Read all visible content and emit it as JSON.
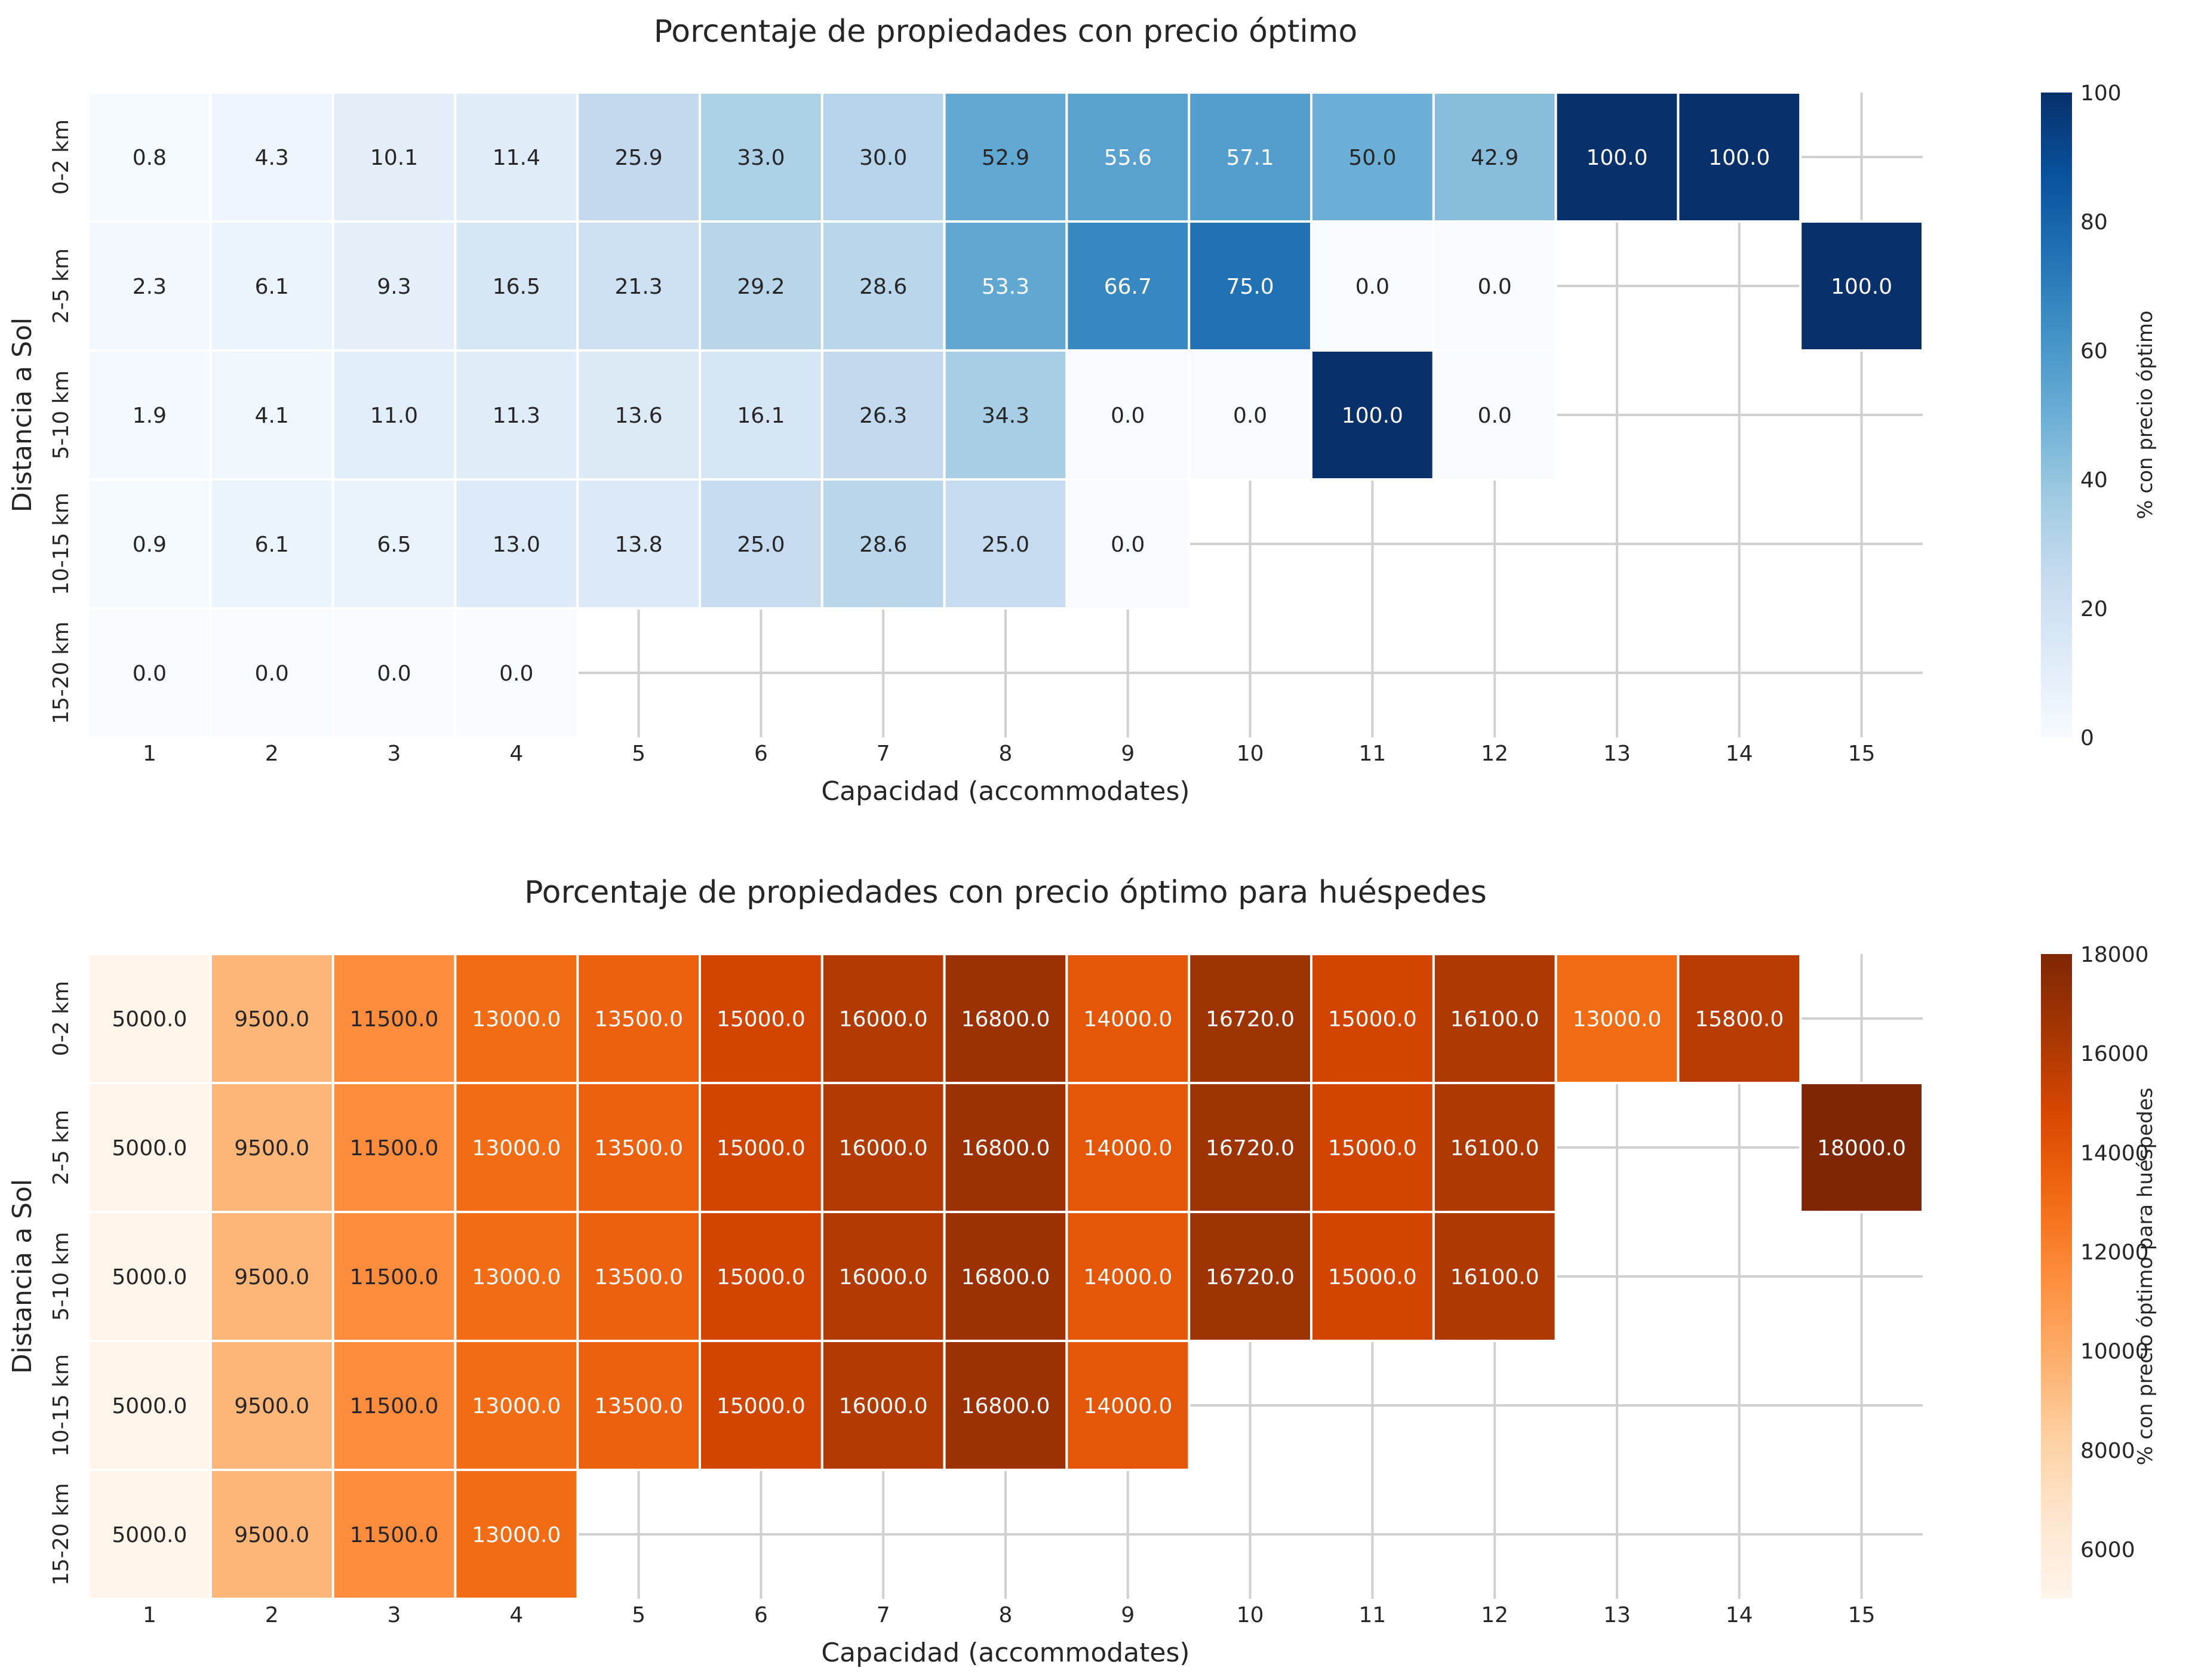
{
  "chart_data": [
    {
      "type": "heatmap",
      "title": "Porcentaje de propiedades con precio óptimo",
      "xlabel": "Capacidad (accommodates)",
      "ylabel": "Distancia a Sol",
      "x_categories": [
        "1",
        "2",
        "3",
        "4",
        "5",
        "6",
        "7",
        "8",
        "9",
        "10",
        "11",
        "12",
        "13",
        "14",
        "15"
      ],
      "y_categories": [
        "0-2 km",
        "2-5 km",
        "5-10 km",
        "10-15 km",
        "15-20 km"
      ],
      "values": [
        [
          0.8,
          4.3,
          10.1,
          11.4,
          25.9,
          33.0,
          30.0,
          52.9,
          55.6,
          57.1,
          50.0,
          42.9,
          100.0,
          100.0,
          null
        ],
        [
          2.3,
          6.1,
          9.3,
          16.5,
          21.3,
          29.2,
          28.6,
          53.3,
          66.7,
          75.0,
          0.0,
          0.0,
          null,
          null,
          100.0
        ],
        [
          1.9,
          4.1,
          11.0,
          11.3,
          13.6,
          16.1,
          26.3,
          34.3,
          0.0,
          0.0,
          100.0,
          0.0,
          null,
          null,
          null
        ],
        [
          0.9,
          6.1,
          6.5,
          13.0,
          13.8,
          25.0,
          28.6,
          25.0,
          0.0,
          null,
          null,
          null,
          null,
          null,
          null
        ],
        [
          0.0,
          0.0,
          0.0,
          0.0,
          null,
          null,
          null,
          null,
          null,
          null,
          null,
          null,
          null,
          null,
          null
        ]
      ],
      "colormap": "Blues",
      "vmin": 0,
      "vmax": 100,
      "colorbar_label": "% con precio óptimo",
      "colorbar_ticks": [
        "0",
        "20",
        "40",
        "60",
        "80",
        "100"
      ],
      "colorbar_tick_values": [
        0,
        20,
        40,
        60,
        80,
        100
      ],
      "text_dark_color": "#262626",
      "text_light_color": "#ffffff",
      "grid": true
    },
    {
      "type": "heatmap",
      "title": "Porcentaje de propiedades con precio óptimo para huéspedes",
      "xlabel": "Capacidad (accommodates)",
      "ylabel": "Distancia a Sol",
      "x_categories": [
        "1",
        "2",
        "3",
        "4",
        "5",
        "6",
        "7",
        "8",
        "9",
        "10",
        "11",
        "12",
        "13",
        "14",
        "15"
      ],
      "y_categories": [
        "0-2 km",
        "2-5 km",
        "5-10 km",
        "10-15 km",
        "15-20 km"
      ],
      "values": [
        [
          5000.0,
          9500.0,
          11500.0,
          13000.0,
          13500.0,
          15000.0,
          16000.0,
          16800.0,
          14000.0,
          16720.0,
          15000.0,
          16100.0,
          13000.0,
          15800.0,
          null
        ],
        [
          5000.0,
          9500.0,
          11500.0,
          13000.0,
          13500.0,
          15000.0,
          16000.0,
          16800.0,
          14000.0,
          16720.0,
          15000.0,
          16100.0,
          null,
          null,
          18000.0
        ],
        [
          5000.0,
          9500.0,
          11500.0,
          13000.0,
          13500.0,
          15000.0,
          16000.0,
          16800.0,
          14000.0,
          16720.0,
          15000.0,
          16100.0,
          null,
          null,
          null
        ],
        [
          5000.0,
          9500.0,
          11500.0,
          13000.0,
          13500.0,
          15000.0,
          16000.0,
          16800.0,
          14000.0,
          null,
          null,
          null,
          null,
          null,
          null
        ],
        [
          5000.0,
          9500.0,
          11500.0,
          13000.0,
          null,
          null,
          null,
          null,
          null,
          null,
          null,
          null,
          null,
          null,
          null
        ]
      ],
      "colormap": "Oranges",
      "vmin": 5000,
      "vmax": 18000,
      "colorbar_label": "% con precio óptimo para huéspedes",
      "colorbar_ticks": [
        "6000",
        "8000",
        "10000",
        "12000",
        "14000",
        "16000",
        "18000"
      ],
      "colorbar_tick_values": [
        6000,
        8000,
        10000,
        12000,
        14000,
        16000,
        18000
      ],
      "text_dark_color": "#262626",
      "text_light_color": "#ffffff",
      "grid": true
    }
  ]
}
